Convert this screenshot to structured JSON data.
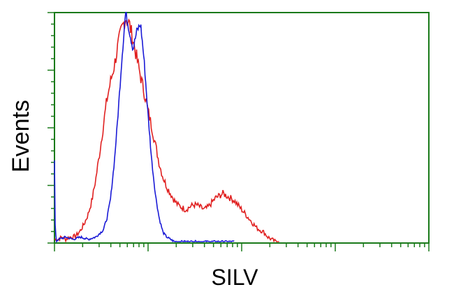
{
  "chart_data": {
    "type": "line",
    "title": "",
    "xlabel": "SILV",
    "ylabel": "Events",
    "xlim": [
      0,
      1
    ],
    "ylim": [
      0,
      1
    ],
    "x_scale": "log",
    "grid": false,
    "legend": "none",
    "frame_color": "#1a7a1a",
    "series": [
      {
        "color": "#e02020",
        "points": [
          [
            0.0,
            0.01
          ],
          [
            0.01,
            0.01
          ],
          [
            0.02,
            0.02
          ],
          [
            0.03,
            0.01
          ],
          [
            0.04,
            0.02
          ],
          [
            0.05,
            0.02
          ],
          [
            0.06,
            0.03
          ],
          [
            0.07,
            0.05
          ],
          [
            0.08,
            0.08
          ],
          [
            0.09,
            0.12
          ],
          [
            0.1,
            0.18
          ],
          [
            0.11,
            0.27
          ],
          [
            0.12,
            0.38
          ],
          [
            0.13,
            0.5
          ],
          [
            0.14,
            0.62
          ],
          [
            0.15,
            0.7
          ],
          [
            0.16,
            0.77
          ],
          [
            0.17,
            0.86
          ],
          [
            0.18,
            0.93
          ],
          [
            0.19,
            0.98
          ],
          [
            0.2,
            0.95
          ],
          [
            0.21,
            0.88
          ],
          [
            0.22,
            0.8
          ],
          [
            0.23,
            0.72
          ],
          [
            0.24,
            0.65
          ],
          [
            0.25,
            0.57
          ],
          [
            0.26,
            0.5
          ],
          [
            0.27,
            0.42
          ],
          [
            0.28,
            0.34
          ],
          [
            0.29,
            0.28
          ],
          [
            0.3,
            0.24
          ],
          [
            0.31,
            0.21
          ],
          [
            0.32,
            0.18
          ],
          [
            0.33,
            0.16
          ],
          [
            0.34,
            0.15
          ],
          [
            0.35,
            0.14
          ],
          [
            0.36,
            0.15
          ],
          [
            0.37,
            0.16
          ],
          [
            0.38,
            0.16
          ],
          [
            0.39,
            0.15
          ],
          [
            0.4,
            0.14
          ],
          [
            0.41,
            0.15
          ],
          [
            0.42,
            0.17
          ],
          [
            0.43,
            0.19
          ],
          [
            0.44,
            0.2
          ],
          [
            0.45,
            0.21
          ],
          [
            0.46,
            0.2
          ],
          [
            0.47,
            0.19
          ],
          [
            0.48,
            0.18
          ],
          [
            0.49,
            0.16
          ],
          [
            0.5,
            0.14
          ],
          [
            0.51,
            0.12
          ],
          [
            0.52,
            0.1
          ],
          [
            0.53,
            0.08
          ],
          [
            0.54,
            0.06
          ],
          [
            0.55,
            0.05
          ],
          [
            0.56,
            0.04
          ],
          [
            0.57,
            0.02
          ],
          [
            0.58,
            0.01
          ],
          [
            0.59,
            0.0
          ],
          [
            0.6,
            0.0
          ]
        ]
      },
      {
        "color": "#1a1ad6",
        "points": [
          [
            0.0,
            0.35
          ],
          [
            0.002,
            0.05
          ],
          [
            0.005,
            0.0
          ],
          [
            0.01,
            0.01
          ],
          [
            0.03,
            0.02
          ],
          [
            0.05,
            0.01
          ],
          [
            0.07,
            0.02
          ],
          [
            0.09,
            0.01
          ],
          [
            0.11,
            0.02
          ],
          [
            0.13,
            0.05
          ],
          [
            0.14,
            0.1
          ],
          [
            0.15,
            0.19
          ],
          [
            0.16,
            0.35
          ],
          [
            0.17,
            0.56
          ],
          [
            0.18,
            0.8
          ],
          [
            0.19,
            1.0
          ],
          [
            0.2,
            0.92
          ],
          [
            0.21,
            0.84
          ],
          [
            0.22,
            0.92
          ],
          [
            0.23,
            0.95
          ],
          [
            0.24,
            0.78
          ],
          [
            0.25,
            0.55
          ],
          [
            0.26,
            0.35
          ],
          [
            0.27,
            0.2
          ],
          [
            0.28,
            0.1
          ],
          [
            0.29,
            0.04
          ],
          [
            0.3,
            0.02
          ],
          [
            0.31,
            0.01
          ],
          [
            0.32,
            0.0
          ],
          [
            0.34,
            0.0
          ],
          [
            0.4,
            0.0
          ],
          [
            0.48,
            0.0
          ]
        ]
      }
    ]
  }
}
